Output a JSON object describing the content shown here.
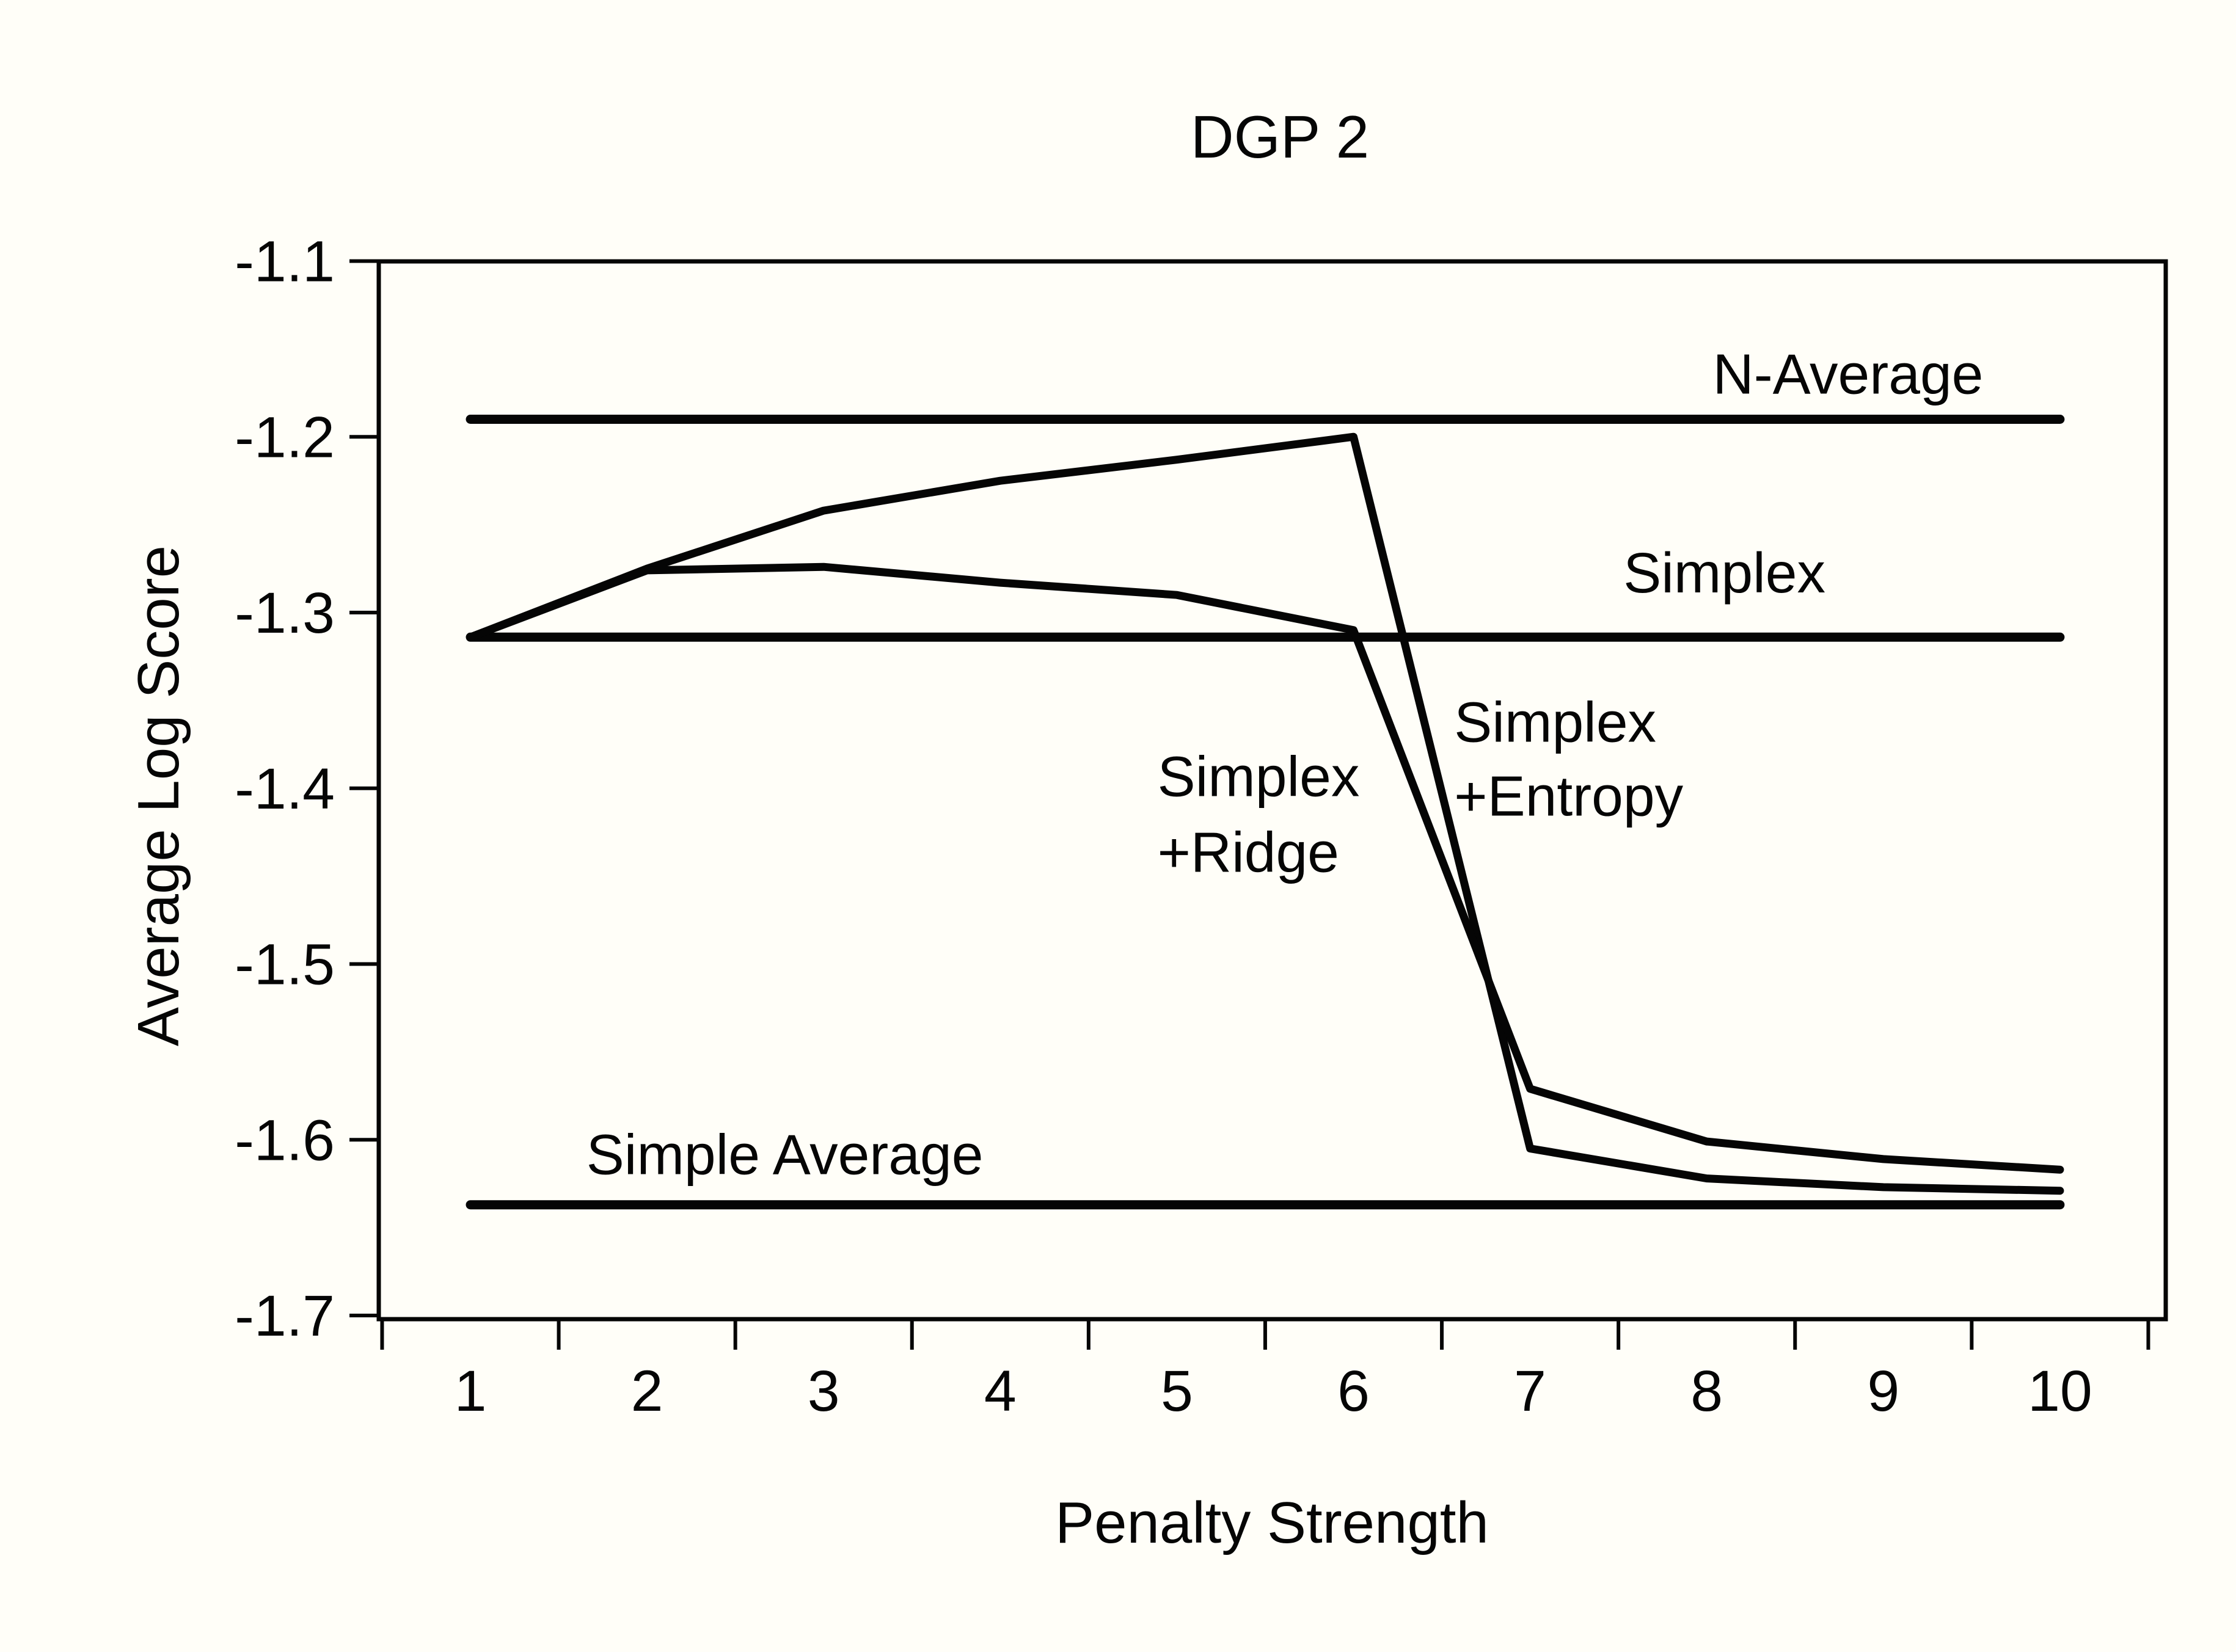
{
  "title": "DGP 2",
  "chart_data": {
    "type": "line",
    "title": "DGP 2",
    "xlabel": "Penalty Strength",
    "ylabel": "Average Log Score",
    "x": [
      1,
      2,
      3,
      4,
      5,
      6,
      7,
      8,
      9,
      10
    ],
    "x_tick_labels": [
      "1",
      "2",
      "3",
      "4",
      "5",
      "6",
      "7",
      "8",
      "9",
      "10"
    ],
    "y_ticks": [
      -1.1,
      -1.2,
      -1.3,
      -1.4,
      -1.5,
      -1.6,
      -1.7
    ],
    "y_tick_labels": [
      "-1.1",
      "-1.2",
      "-1.3",
      "-1.4",
      "-1.5",
      "-1.6",
      "-1.7"
    ],
    "xlim": [
      0.48,
      10.6
    ],
    "ylim": [
      -1.702,
      -1.098
    ],
    "grid": false,
    "legend_position": "inline-annotations",
    "line_color": "#050505",
    "background_color": "#fffef8",
    "series": [
      {
        "name": "N-Average",
        "kind": "flat",
        "value": -1.19,
        "values": [
          -1.19,
          -1.19,
          -1.19,
          -1.19,
          -1.19,
          -1.19,
          -1.19,
          -1.19,
          -1.19,
          -1.19
        ]
      },
      {
        "name": "Simplex",
        "kind": "flat",
        "value": -1.314,
        "values": [
          -1.314,
          -1.314,
          -1.314,
          -1.314,
          -1.314,
          -1.314,
          -1.314,
          -1.314,
          -1.314,
          -1.314
        ]
      },
      {
        "name": "Simple Average",
        "kind": "flat",
        "value": -1.637,
        "values": [
          -1.637,
          -1.637,
          -1.637,
          -1.637,
          -1.637,
          -1.637,
          -1.637,
          -1.637,
          -1.637,
          -1.637
        ]
      },
      {
        "name": "Simplex+Entropy",
        "kind": "curve",
        "values": [
          -1.314,
          -1.275,
          -1.242,
          -1.225,
          -1.213,
          -1.2,
          -1.605,
          -1.622,
          -1.627,
          -1.629
        ]
      },
      {
        "name": "Simplex+Ridge",
        "kind": "curve",
        "values": [
          -1.314,
          -1.276,
          -1.274,
          -1.283,
          -1.29,
          -1.31,
          -1.571,
          -1.601,
          -1.611,
          -1.617
        ]
      }
    ],
    "annotations": [
      {
        "text": "N-Average",
        "x": 8.8,
        "y": -1.164,
        "anchor": "middle"
      },
      {
        "text": "Simplex",
        "x": 8.1,
        "y": -1.277,
        "anchor": "middle"
      },
      {
        "text": "Simplex",
        "x": 4.89,
        "y": -1.393,
        "anchor": "start"
      },
      {
        "text": "+Ridge",
        "x": 4.89,
        "y": -1.436,
        "anchor": "start"
      },
      {
        "text": "Simplex",
        "x": 6.57,
        "y": -1.362,
        "anchor": "start"
      },
      {
        "text": "+Entropy",
        "x": 6.57,
        "y": -1.404,
        "anchor": "start"
      },
      {
        "text": "Simple Average",
        "x": 2.78,
        "y": -1.608,
        "anchor": "middle"
      }
    ]
  }
}
